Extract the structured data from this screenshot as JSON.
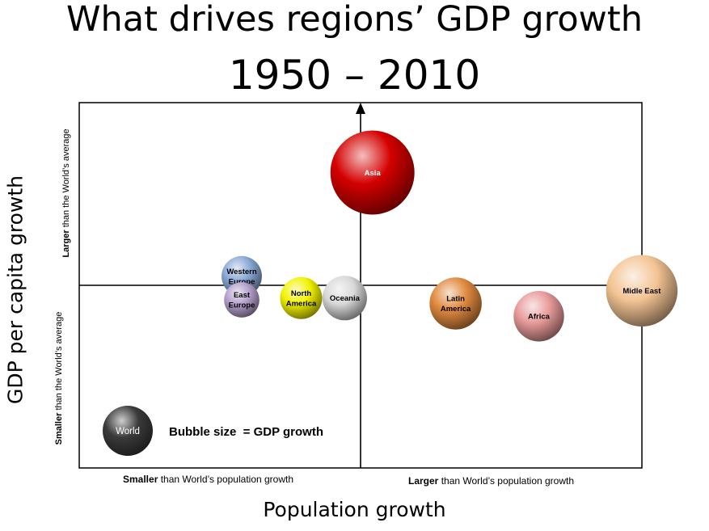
{
  "header": {
    "title": "What drives regions’ GDP growth",
    "subtitle": "1950 – 2010"
  },
  "chart_data": {
    "type": "scatter",
    "xlabel": "Population growth",
    "ylabel": "GDP per capita growth",
    "x_categories": {
      "left": {
        "bold": "Smaller",
        "rest": " than World’s population growth"
      },
      "right": {
        "bold": "Larger",
        "rest": " than World’s population growth"
      }
    },
    "y_categories": {
      "top": {
        "bold": "Larger",
        "rest": " than the World’s average"
      },
      "bottom": {
        "bold": "Smaller",
        "rest": " than the World’s average"
      }
    },
    "legend": {
      "label": "World",
      "text": "Bubble size  = GDP growth",
      "color": "#000000"
    },
    "bubbles": [
      {
        "name": "Asia",
        "label": [
          "Asia"
        ],
        "x": 0.03,
        "y": 0.62,
        "size": 1.0,
        "color": "#d40000",
        "text_color": "#ffffff"
      },
      {
        "name": "Middle East",
        "label": [
          "Midle East"
        ],
        "x": 0.71,
        "y": -0.03,
        "size": 0.85,
        "color": "#f4c494",
        "text_color": "#000000"
      },
      {
        "name": "Latin America",
        "label": [
          "Latin",
          "America"
        ],
        "x": 0.24,
        "y": -0.1,
        "size": 0.62,
        "color": "#e0893e",
        "text_color": "#000000"
      },
      {
        "name": "Africa",
        "label": [
          "Africa"
        ],
        "x": 0.45,
        "y": -0.17,
        "size": 0.6,
        "color": "#e89a9a",
        "text_color": "#000000"
      },
      {
        "name": "Oceania",
        "label": [
          "Oceania"
        ],
        "x": -0.04,
        "y": -0.07,
        "size": 0.53,
        "color": "#d8d8d8",
        "text_color": "#000000"
      },
      {
        "name": "North America",
        "label": [
          "North",
          "America"
        ],
        "x": -0.15,
        "y": -0.07,
        "size": 0.5,
        "color": "#f2f200",
        "text_color": "#000000"
      },
      {
        "name": "East Europe",
        "label": [
          "East",
          "Europe"
        ],
        "x": -0.3,
        "y": -0.08,
        "size": 0.42,
        "color": "#b6a0cc",
        "text_color": "#000000"
      },
      {
        "name": "Western Europe",
        "label": [
          "Western",
          "Europe"
        ],
        "x": -0.3,
        "y": 0.05,
        "size": 0.48,
        "color": "#8aa8d6",
        "text_color": "#000000"
      }
    ]
  }
}
